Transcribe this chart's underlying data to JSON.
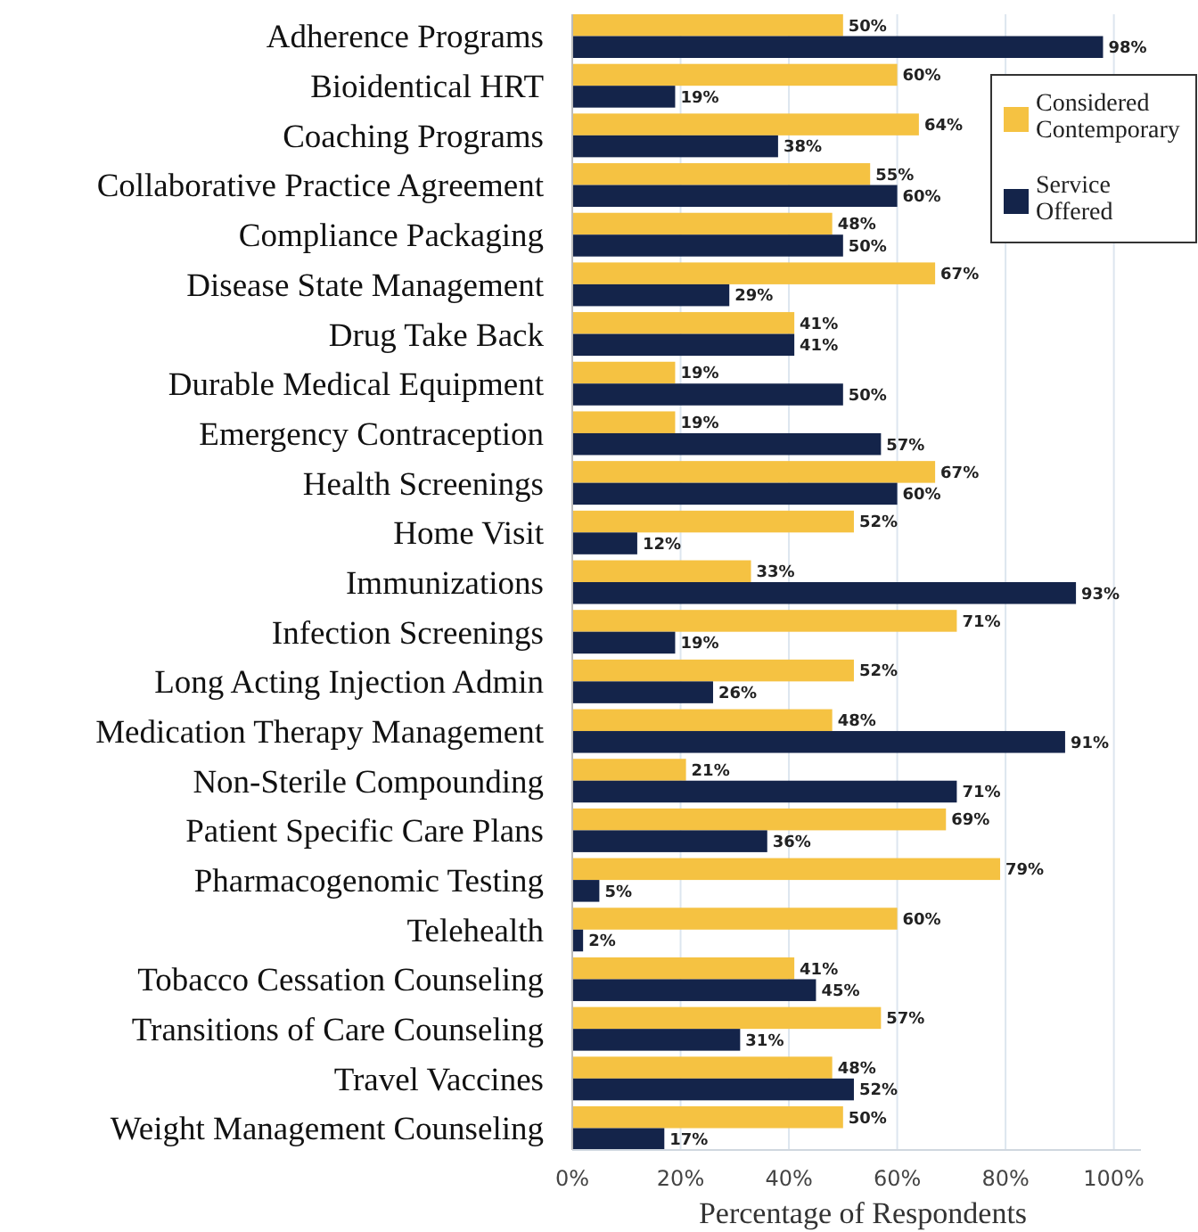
{
  "chart_data": {
    "type": "bar",
    "orientation": "horizontal",
    "xlabel": "Percentage of Respondents",
    "categories": [
      "Adherence Programs",
      "Bioidentical HRT",
      "Coaching Programs",
      "Collaborative Practice Agreement",
      "Compliance Packaging",
      "Disease State Management",
      "Drug Take Back",
      "Durable Medical Equipment",
      "Emergency Contraception",
      "Health Screenings",
      "Home Visit",
      "Immunizations",
      "Infection Screenings",
      "Long Acting Injection Admin",
      "Medication Therapy Management",
      "Non-Sterile Compounding",
      "Patient Specific Care Plans",
      "Pharmacogenomic Testing",
      "Telehealth",
      "Tobacco Cessation Counseling",
      "Transitions of Care Counseling",
      "Travel Vaccines",
      "Weight Management Counseling"
    ],
    "series": [
      {
        "name": "Considered Contemporary",
        "color": "#f5c242",
        "values": [
          50,
          60,
          64,
          55,
          48,
          67,
          41,
          19,
          19,
          67,
          52,
          33,
          71,
          52,
          48,
          21,
          69,
          79,
          60,
          41,
          57,
          48,
          50
        ],
        "value_labels": [
          "50%",
          "60%",
          "64%",
          "55%",
          "48%",
          "67%",
          "41%",
          "19%",
          "19%",
          "67%",
          "52%",
          "33%",
          "71%",
          "52%",
          "48%",
          "21%",
          "69%",
          "79%",
          "60%",
          "41%",
          "57%",
          "48%",
          "50%"
        ]
      },
      {
        "name": "Service Offered",
        "color": "#14244a",
        "values": [
          98,
          19,
          38,
          60,
          50,
          29,
          41,
          50,
          57,
          60,
          12,
          93,
          19,
          26,
          91,
          71,
          36,
          5,
          2,
          45,
          31,
          52,
          17
        ],
        "value_labels": [
          "98%",
          "19%",
          "38%",
          "60%",
          "50%",
          "29%",
          "41%",
          "50%",
          "57%",
          "60%",
          "12%",
          "93%",
          "19%",
          "26%",
          "91%",
          "71%",
          "36%",
          "5%",
          "2%",
          "45%",
          "31%",
          "52%",
          "17%"
        ]
      }
    ],
    "xlim": [
      0,
      105
    ],
    "xticks": [
      {
        "value": 0,
        "label": "0%"
      },
      {
        "value": 20,
        "label": "20%"
      },
      {
        "value": 40,
        "label": "40%"
      },
      {
        "value": 60,
        "label": "60%"
      },
      {
        "value": 80,
        "label": "80%"
      },
      {
        "value": 100,
        "label": "100%"
      }
    ],
    "grid": "x",
    "legend": "top right"
  }
}
